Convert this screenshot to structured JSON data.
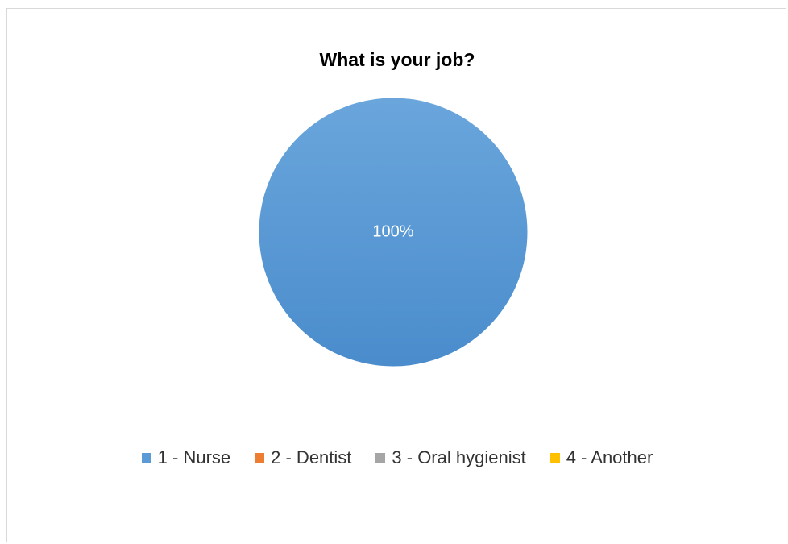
{
  "chart_data": {
    "type": "pie",
    "title": "What is your job?",
    "categories": [
      "1 - Nurse",
      "2 - Dentist",
      "3 - Oral hygienist",
      "4 - Another"
    ],
    "values": [
      100,
      0,
      0,
      0
    ],
    "data_labels": [
      "100%",
      "",
      "",
      ""
    ],
    "colors": [
      "#5b9bd5",
      "#ed7d31",
      "#a5a5a5",
      "#ffc000"
    ],
    "legend_position": "bottom"
  }
}
